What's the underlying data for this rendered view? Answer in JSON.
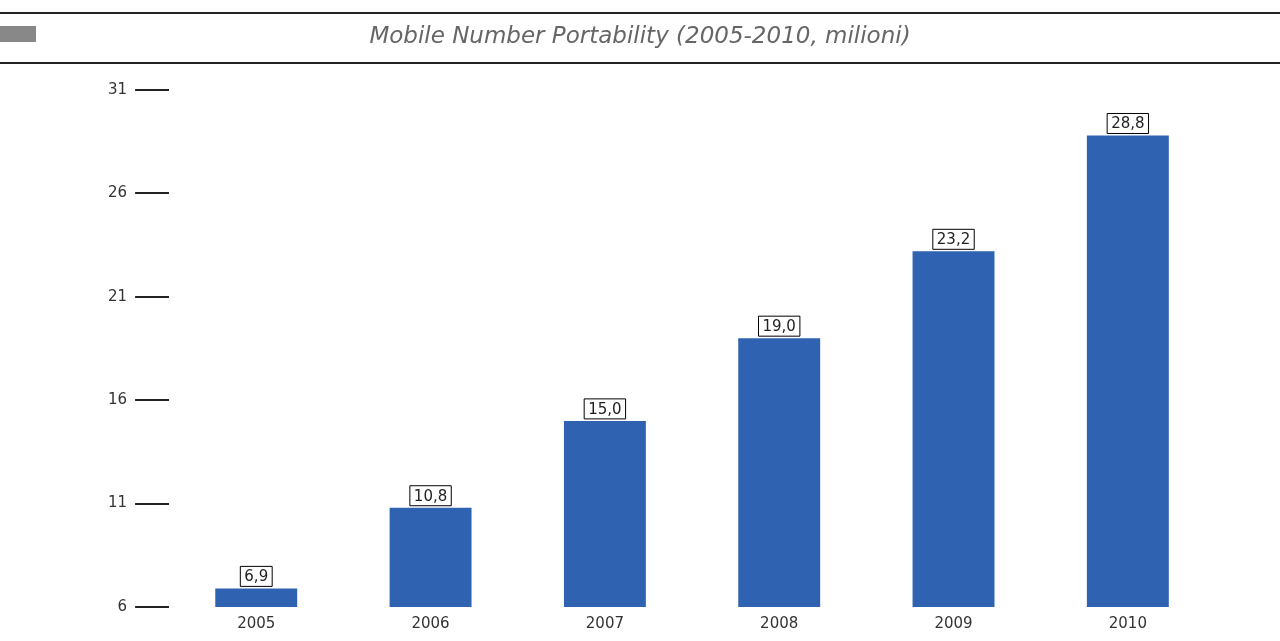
{
  "chart_data": {
    "type": "bar",
    "title": "Mobile Number Portability (2005-2010, milioni)",
    "categories": [
      "2005",
      "2006",
      "2007",
      "2008",
      "2009",
      "2010"
    ],
    "values": [
      6.9,
      10.8,
      15.0,
      19.0,
      23.2,
      28.8
    ],
    "value_labels": [
      "6,9",
      "10,8",
      "15,0",
      "19,0",
      "23,2",
      "28,8"
    ],
    "color": "#2f62b0",
    "ylim": [
      6,
      31
    ],
    "yticks": [
      6,
      11,
      16,
      21,
      26,
      31
    ],
    "grid": false,
    "legend": false
  }
}
